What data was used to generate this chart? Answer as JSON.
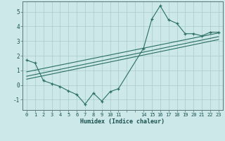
{
  "xlabel": "Humidex (Indice chaleur)",
  "bg_color": "#cce8e8",
  "grid_color": "#aacccc",
  "line_color": "#2a7060",
  "xlim": [
    -0.5,
    23.5
  ],
  "ylim": [
    -1.7,
    5.7
  ],
  "yticks": [
    -1,
    0,
    1,
    2,
    3,
    4,
    5
  ],
  "xticks_all": [
    0,
    1,
    2,
    3,
    4,
    5,
    6,
    7,
    8,
    9,
    10,
    11,
    12,
    13,
    14,
    15,
    16,
    17,
    18,
    19,
    20,
    21,
    22,
    23
  ],
  "xtick_labels": [
    "0",
    "1",
    "2",
    "3",
    "4",
    "5",
    "6",
    "7",
    "8",
    "9",
    "10",
    "11",
    "",
    "",
    "14",
    "15",
    "16",
    "17",
    "18",
    "19",
    "20",
    "21",
    "22",
    "23"
  ],
  "line1_x": [
    0,
    1,
    2,
    3,
    4,
    5,
    6,
    7,
    8,
    9,
    10,
    11,
    14,
    15,
    16,
    17,
    18,
    19,
    20,
    21,
    22,
    23
  ],
  "line1_y": [
    1.7,
    1.5,
    0.3,
    0.1,
    -0.1,
    -0.4,
    -0.65,
    -1.3,
    -0.55,
    -1.1,
    -0.45,
    -0.25,
    2.5,
    4.5,
    5.4,
    4.45,
    4.2,
    3.5,
    3.5,
    3.35,
    3.6,
    3.6
  ],
  "line2_x": [
    0,
    23
  ],
  "line2_y": [
    0.9,
    3.55
  ],
  "line3_x": [
    0,
    23
  ],
  "line3_y": [
    0.6,
    3.3
  ],
  "line4_x": [
    0,
    23
  ],
  "line4_y": [
    0.4,
    3.1
  ]
}
